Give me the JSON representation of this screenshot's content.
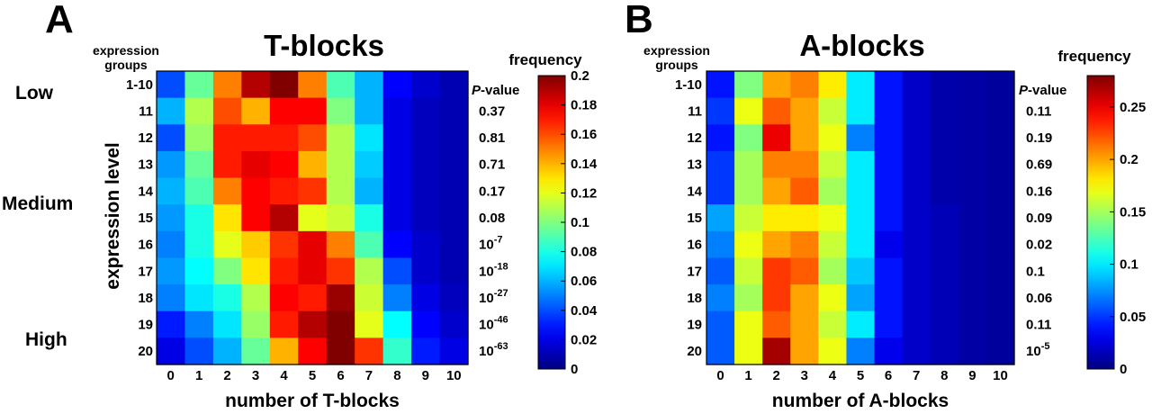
{
  "chart_data": [
    {
      "type": "heatmap",
      "panel_letter": "A",
      "title": "T-blocks",
      "xlabel": "number of T-blocks",
      "ylabel": "expression level",
      "groups_header": [
        "expression",
        "groups"
      ],
      "level_labels": [
        "Low",
        "Medium",
        "High"
      ],
      "x": [
        "0",
        "1",
        "2",
        "3",
        "4",
        "5",
        "6",
        "7",
        "8",
        "9",
        "10"
      ],
      "y": [
        "1-10",
        "11",
        "12",
        "13",
        "14",
        "15",
        "16",
        "17",
        "18",
        "19",
        "20"
      ],
      "pvalue_header": "P-value",
      "pvalues": [
        "",
        "0.37",
        "0.81",
        "0.71",
        "0.17",
        "0.08",
        {
          "base": "10",
          "exp": "-7"
        },
        {
          "base": "10",
          "exp": "-18"
        },
        {
          "base": "10",
          "exp": "-27"
        },
        {
          "base": "10",
          "exp": "-46"
        },
        {
          "base": "10",
          "exp": "-63"
        }
      ],
      "colorbar_label": "frequency",
      "colorbar_ticks": [
        "0",
        "0.02",
        "0.04",
        "0.06",
        "0.08",
        "0.1",
        "0.12",
        "0.14",
        "0.16",
        "0.18",
        "0.2"
      ],
      "zlim": [
        0,
        0.2
      ],
      "colormap": "jet",
      "values": [
        [
          0.04,
          0.095,
          0.15,
          0.19,
          0.2,
          0.15,
          0.09,
          0.06,
          0.025,
          0.015,
          0.01
        ],
        [
          0.06,
          0.11,
          0.16,
          0.14,
          0.175,
          0.175,
          0.1,
          0.06,
          0.02,
          0.012,
          0.01
        ],
        [
          0.04,
          0.105,
          0.17,
          0.17,
          0.17,
          0.16,
          0.11,
          0.07,
          0.02,
          0.012,
          0.01
        ],
        [
          0.055,
          0.095,
          0.17,
          0.18,
          0.175,
          0.14,
          0.11,
          0.065,
          0.02,
          0.012,
          0.01
        ],
        [
          0.06,
          0.09,
          0.15,
          0.175,
          0.17,
          0.165,
          0.11,
          0.06,
          0.02,
          0.012,
          0.01
        ],
        [
          0.055,
          0.08,
          0.13,
          0.175,
          0.19,
          0.12,
          0.115,
          0.08,
          0.02,
          0.012,
          0.01
        ],
        [
          0.05,
          0.08,
          0.12,
          0.135,
          0.165,
          0.18,
          0.15,
          0.09,
          0.025,
          0.015,
          0.01
        ],
        [
          0.055,
          0.075,
          0.1,
          0.13,
          0.17,
          0.18,
          0.165,
          0.11,
          0.04,
          0.015,
          0.01
        ],
        [
          0.05,
          0.07,
          0.08,
          0.11,
          0.175,
          0.17,
          0.195,
          0.115,
          0.05,
          0.02,
          0.012
        ],
        [
          0.03,
          0.05,
          0.07,
          0.105,
          0.17,
          0.19,
          0.2,
          0.12,
          0.075,
          0.025,
          0.015
        ],
        [
          0.02,
          0.04,
          0.06,
          0.095,
          0.14,
          0.175,
          0.2,
          0.165,
          0.085,
          0.03,
          0.02
        ]
      ]
    },
    {
      "type": "heatmap",
      "panel_letter": "B",
      "title": "A-blocks",
      "xlabel": "number of A-blocks",
      "groups_header": [
        "expression",
        "groups"
      ],
      "x": [
        "0",
        "1",
        "2",
        "3",
        "4",
        "5",
        "6",
        "7",
        "8",
        "9",
        "10"
      ],
      "y": [
        "1-10",
        "11",
        "12",
        "13",
        "14",
        "15",
        "16",
        "17",
        "18",
        "19",
        "20"
      ],
      "pvalue_header": "P-value",
      "pvalues": [
        "",
        "0.11",
        "0.19",
        "0.69",
        "0.16",
        "0.09",
        "0.02",
        "0.1",
        "0.06",
        "0.11",
        {
          "base": "10",
          "exp": "-5"
        }
      ],
      "colorbar_label": "frequency",
      "colorbar_ticks": [
        "0",
        "0.05",
        "0.1",
        "0.15",
        "0.2",
        "0.25"
      ],
      "zlim": [
        0,
        0.28
      ],
      "colormap": "jet",
      "values": [
        [
          0.04,
          0.14,
          0.2,
          0.21,
          0.18,
          0.1,
          0.04,
          0.02,
          0.012,
          0.01,
          0.008
        ],
        [
          0.05,
          0.17,
          0.22,
          0.2,
          0.16,
          0.1,
          0.04,
          0.02,
          0.012,
          0.01,
          0.008
        ],
        [
          0.04,
          0.14,
          0.25,
          0.2,
          0.17,
          0.07,
          0.04,
          0.02,
          0.012,
          0.01,
          0.008
        ],
        [
          0.05,
          0.15,
          0.21,
          0.21,
          0.16,
          0.1,
          0.04,
          0.02,
          0.012,
          0.01,
          0.008
        ],
        [
          0.05,
          0.15,
          0.2,
          0.22,
          0.15,
          0.1,
          0.04,
          0.02,
          0.012,
          0.01,
          0.008
        ],
        [
          0.08,
          0.16,
          0.18,
          0.18,
          0.17,
          0.1,
          0.04,
          0.02,
          0.015,
          0.01,
          0.008
        ],
        [
          0.07,
          0.17,
          0.2,
          0.21,
          0.16,
          0.1,
          0.03,
          0.02,
          0.015,
          0.01,
          0.008
        ],
        [
          0.06,
          0.16,
          0.23,
          0.22,
          0.15,
          0.09,
          0.04,
          0.02,
          0.015,
          0.01,
          0.008
        ],
        [
          0.07,
          0.15,
          0.23,
          0.2,
          0.17,
          0.08,
          0.04,
          0.02,
          0.015,
          0.01,
          0.008
        ],
        [
          0.06,
          0.17,
          0.22,
          0.2,
          0.16,
          0.1,
          0.04,
          0.02,
          0.015,
          0.01,
          0.008
        ],
        [
          0.06,
          0.17,
          0.27,
          0.2,
          0.17,
          0.07,
          0.03,
          0.02,
          0.015,
          0.01,
          0.008
        ]
      ]
    }
  ]
}
